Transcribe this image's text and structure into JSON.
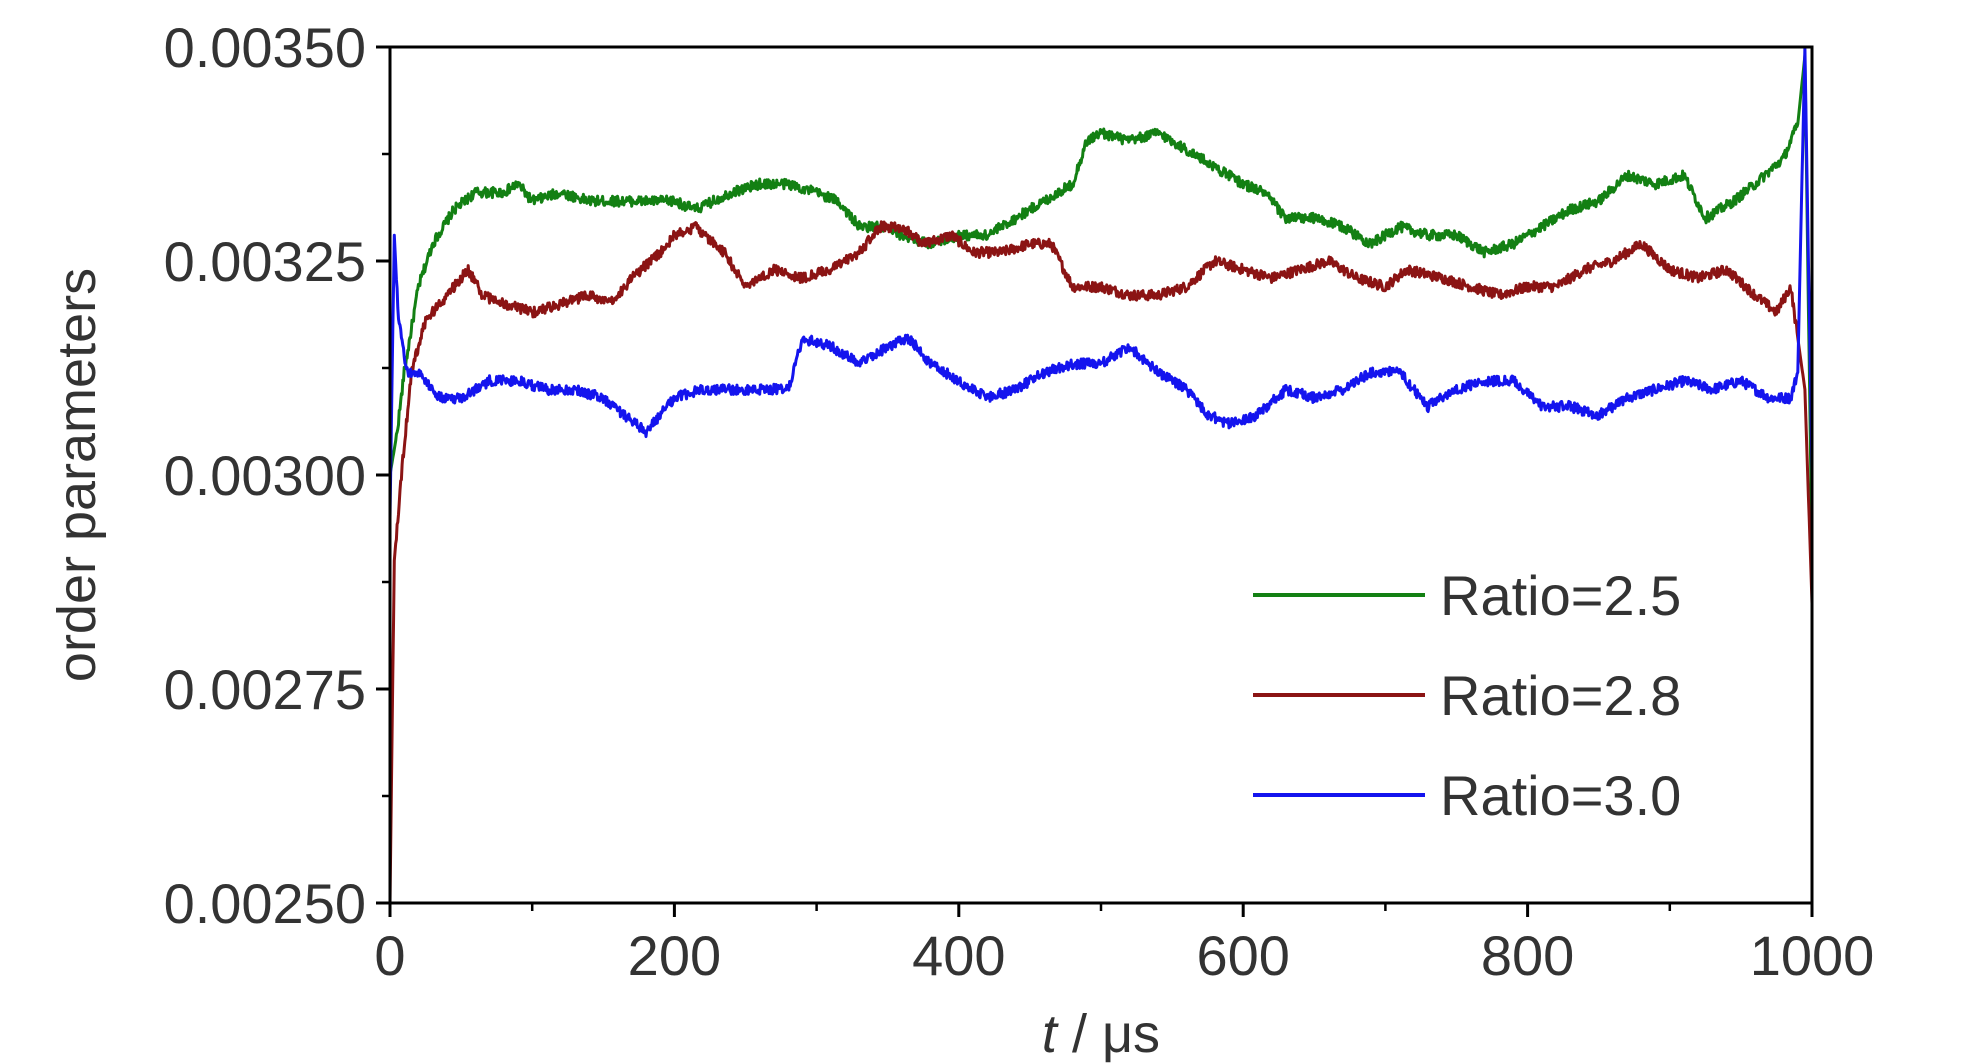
{
  "chart_data": {
    "type": "line",
    "xlabel_italic": "t",
    "xlabel_rest": " / μs",
    "ylabel": "order parameters",
    "xlim": [
      0,
      1000
    ],
    "ylim": [
      0.0025,
      0.0035
    ],
    "x_ticks": [
      "0",
      "200",
      "400",
      "600",
      "800",
      "1000"
    ],
    "y_ticks": [
      "0.00250",
      "0.00275",
      "0.00300",
      "0.00325",
      "0.00350"
    ],
    "grid": false,
    "legend_position": "center-right",
    "series": [
      {
        "name": "Ratio=2.5",
        "color": "#138013",
        "points": [
          [
            0,
            0.003
          ],
          [
            5,
            0.00305
          ],
          [
            10,
            0.00312
          ],
          [
            20,
            0.00322
          ],
          [
            30,
            0.00327
          ],
          [
            45,
            0.00331
          ],
          [
            60,
            0.00333
          ],
          [
            80,
            0.00333
          ],
          [
            90,
            0.00334
          ],
          [
            100,
            0.00332
          ],
          [
            120,
            0.00333
          ],
          [
            140,
            0.00332
          ],
          [
            160,
            0.00332
          ],
          [
            180,
            0.00332
          ],
          [
            200,
            0.00332
          ],
          [
            215,
            0.00331
          ],
          [
            240,
            0.00333
          ],
          [
            260,
            0.00334
          ],
          [
            280,
            0.00334
          ],
          [
            300,
            0.00333
          ],
          [
            315,
            0.00332
          ],
          [
            330,
            0.00329
          ],
          [
            345,
            0.00329
          ],
          [
            360,
            0.00328
          ],
          [
            380,
            0.00327
          ],
          [
            400,
            0.00328
          ],
          [
            420,
            0.00328
          ],
          [
            440,
            0.0033
          ],
          [
            460,
            0.00332
          ],
          [
            480,
            0.00334
          ],
          [
            490,
            0.00339
          ],
          [
            500,
            0.0034
          ],
          [
            520,
            0.00339
          ],
          [
            540,
            0.0034
          ],
          [
            560,
            0.00338
          ],
          [
            580,
            0.00336
          ],
          [
            600,
            0.00334
          ],
          [
            615,
            0.00333
          ],
          [
            630,
            0.0033
          ],
          [
            650,
            0.0033
          ],
          [
            670,
            0.00329
          ],
          [
            690,
            0.00327
          ],
          [
            710,
            0.00329
          ],
          [
            730,
            0.00328
          ],
          [
            750,
            0.00328
          ],
          [
            770,
            0.00326
          ],
          [
            790,
            0.00327
          ],
          [
            810,
            0.00329
          ],
          [
            830,
            0.00331
          ],
          [
            850,
            0.00332
          ],
          [
            870,
            0.00335
          ],
          [
            890,
            0.00334
          ],
          [
            910,
            0.00335
          ],
          [
            925,
            0.0033
          ],
          [
            945,
            0.00332
          ],
          [
            960,
            0.00334
          ],
          [
            980,
            0.00337
          ],
          [
            990,
            0.00341
          ],
          [
            995,
            0.00349
          ],
          [
            1000,
            0.0029
          ]
        ]
      },
      {
        "name": "Ratio=2.8",
        "color": "#8b1414",
        "points": [
          [
            0,
            0.0025
          ],
          [
            3,
            0.0029
          ],
          [
            8,
            0.003
          ],
          [
            15,
            0.00312
          ],
          [
            25,
            0.00318
          ],
          [
            40,
            0.00321
          ],
          [
            55,
            0.00324
          ],
          [
            65,
            0.00321
          ],
          [
            80,
            0.0032
          ],
          [
            100,
            0.00319
          ],
          [
            120,
            0.0032
          ],
          [
            140,
            0.00321
          ],
          [
            155,
            0.0032
          ],
          [
            170,
            0.00323
          ],
          [
            190,
            0.00326
          ],
          [
            200,
            0.00328
          ],
          [
            215,
            0.00329
          ],
          [
            235,
            0.00326
          ],
          [
            250,
            0.00322
          ],
          [
            270,
            0.00324
          ],
          [
            290,
            0.00323
          ],
          [
            310,
            0.00324
          ],
          [
            330,
            0.00326
          ],
          [
            345,
            0.00329
          ],
          [
            360,
            0.00329
          ],
          [
            375,
            0.00327
          ],
          [
            395,
            0.00328
          ],
          [
            410,
            0.00326
          ],
          [
            430,
            0.00326
          ],
          [
            450,
            0.00327
          ],
          [
            465,
            0.00327
          ],
          [
            480,
            0.00322
          ],
          [
            500,
            0.00322
          ],
          [
            520,
            0.00321
          ],
          [
            540,
            0.00321
          ],
          [
            560,
            0.00322
          ],
          [
            580,
            0.00325
          ],
          [
            600,
            0.00324
          ],
          [
            620,
            0.00323
          ],
          [
            640,
            0.00324
          ],
          [
            660,
            0.00325
          ],
          [
            680,
            0.00323
          ],
          [
            700,
            0.00322
          ],
          [
            715,
            0.00324
          ],
          [
            740,
            0.00323
          ],
          [
            760,
            0.00322
          ],
          [
            780,
            0.00321
          ],
          [
            800,
            0.00322
          ],
          [
            820,
            0.00322
          ],
          [
            840,
            0.00324
          ],
          [
            860,
            0.00325
          ],
          [
            880,
            0.00327
          ],
          [
            900,
            0.00324
          ],
          [
            920,
            0.00323
          ],
          [
            940,
            0.00324
          ],
          [
            960,
            0.00321
          ],
          [
            975,
            0.00319
          ],
          [
            985,
            0.00322
          ],
          [
            995,
            0.0031
          ],
          [
            1000,
            0.00285
          ]
        ]
      },
      {
        "name": "Ratio=3.0",
        "color": "#1414ee",
        "points": [
          [
            0,
            0.00295
          ],
          [
            3,
            0.00328
          ],
          [
            6,
            0.00318
          ],
          [
            12,
            0.00312
          ],
          [
            20,
            0.00312
          ],
          [
            35,
            0.00309
          ],
          [
            50,
            0.00309
          ],
          [
            70,
            0.00311
          ],
          [
            90,
            0.00311
          ],
          [
            110,
            0.0031
          ],
          [
            130,
            0.0031
          ],
          [
            150,
            0.00309
          ],
          [
            165,
            0.00307
          ],
          [
            180,
            0.00305
          ],
          [
            200,
            0.00309
          ],
          [
            220,
            0.0031
          ],
          [
            240,
            0.0031
          ],
          [
            260,
            0.0031
          ],
          [
            280,
            0.0031
          ],
          [
            290,
            0.00316
          ],
          [
            310,
            0.00315
          ],
          [
            330,
            0.00313
          ],
          [
            350,
            0.00315
          ],
          [
            365,
            0.00316
          ],
          [
            380,
            0.00313
          ],
          [
            400,
            0.00311
          ],
          [
            420,
            0.00309
          ],
          [
            440,
            0.0031
          ],
          [
            460,
            0.00312
          ],
          [
            480,
            0.00313
          ],
          [
            500,
            0.00313
          ],
          [
            520,
            0.00315
          ],
          [
            540,
            0.00312
          ],
          [
            560,
            0.0031
          ],
          [
            575,
            0.00307
          ],
          [
            590,
            0.00306
          ],
          [
            610,
            0.00307
          ],
          [
            630,
            0.0031
          ],
          [
            650,
            0.00309
          ],
          [
            670,
            0.0031
          ],
          [
            690,
            0.00312
          ],
          [
            710,
            0.00312
          ],
          [
            730,
            0.00308
          ],
          [
            750,
            0.0031
          ],
          [
            770,
            0.00311
          ],
          [
            790,
            0.00311
          ],
          [
            810,
            0.00308
          ],
          [
            830,
            0.00308
          ],
          [
            850,
            0.00307
          ],
          [
            870,
            0.00309
          ],
          [
            890,
            0.0031
          ],
          [
            910,
            0.00311
          ],
          [
            930,
            0.0031
          ],
          [
            950,
            0.00311
          ],
          [
            970,
            0.00309
          ],
          [
            985,
            0.00309
          ],
          [
            990,
            0.00312
          ],
          [
            995,
            0.0035
          ],
          [
            1000,
            0.003
          ]
        ]
      }
    ]
  }
}
